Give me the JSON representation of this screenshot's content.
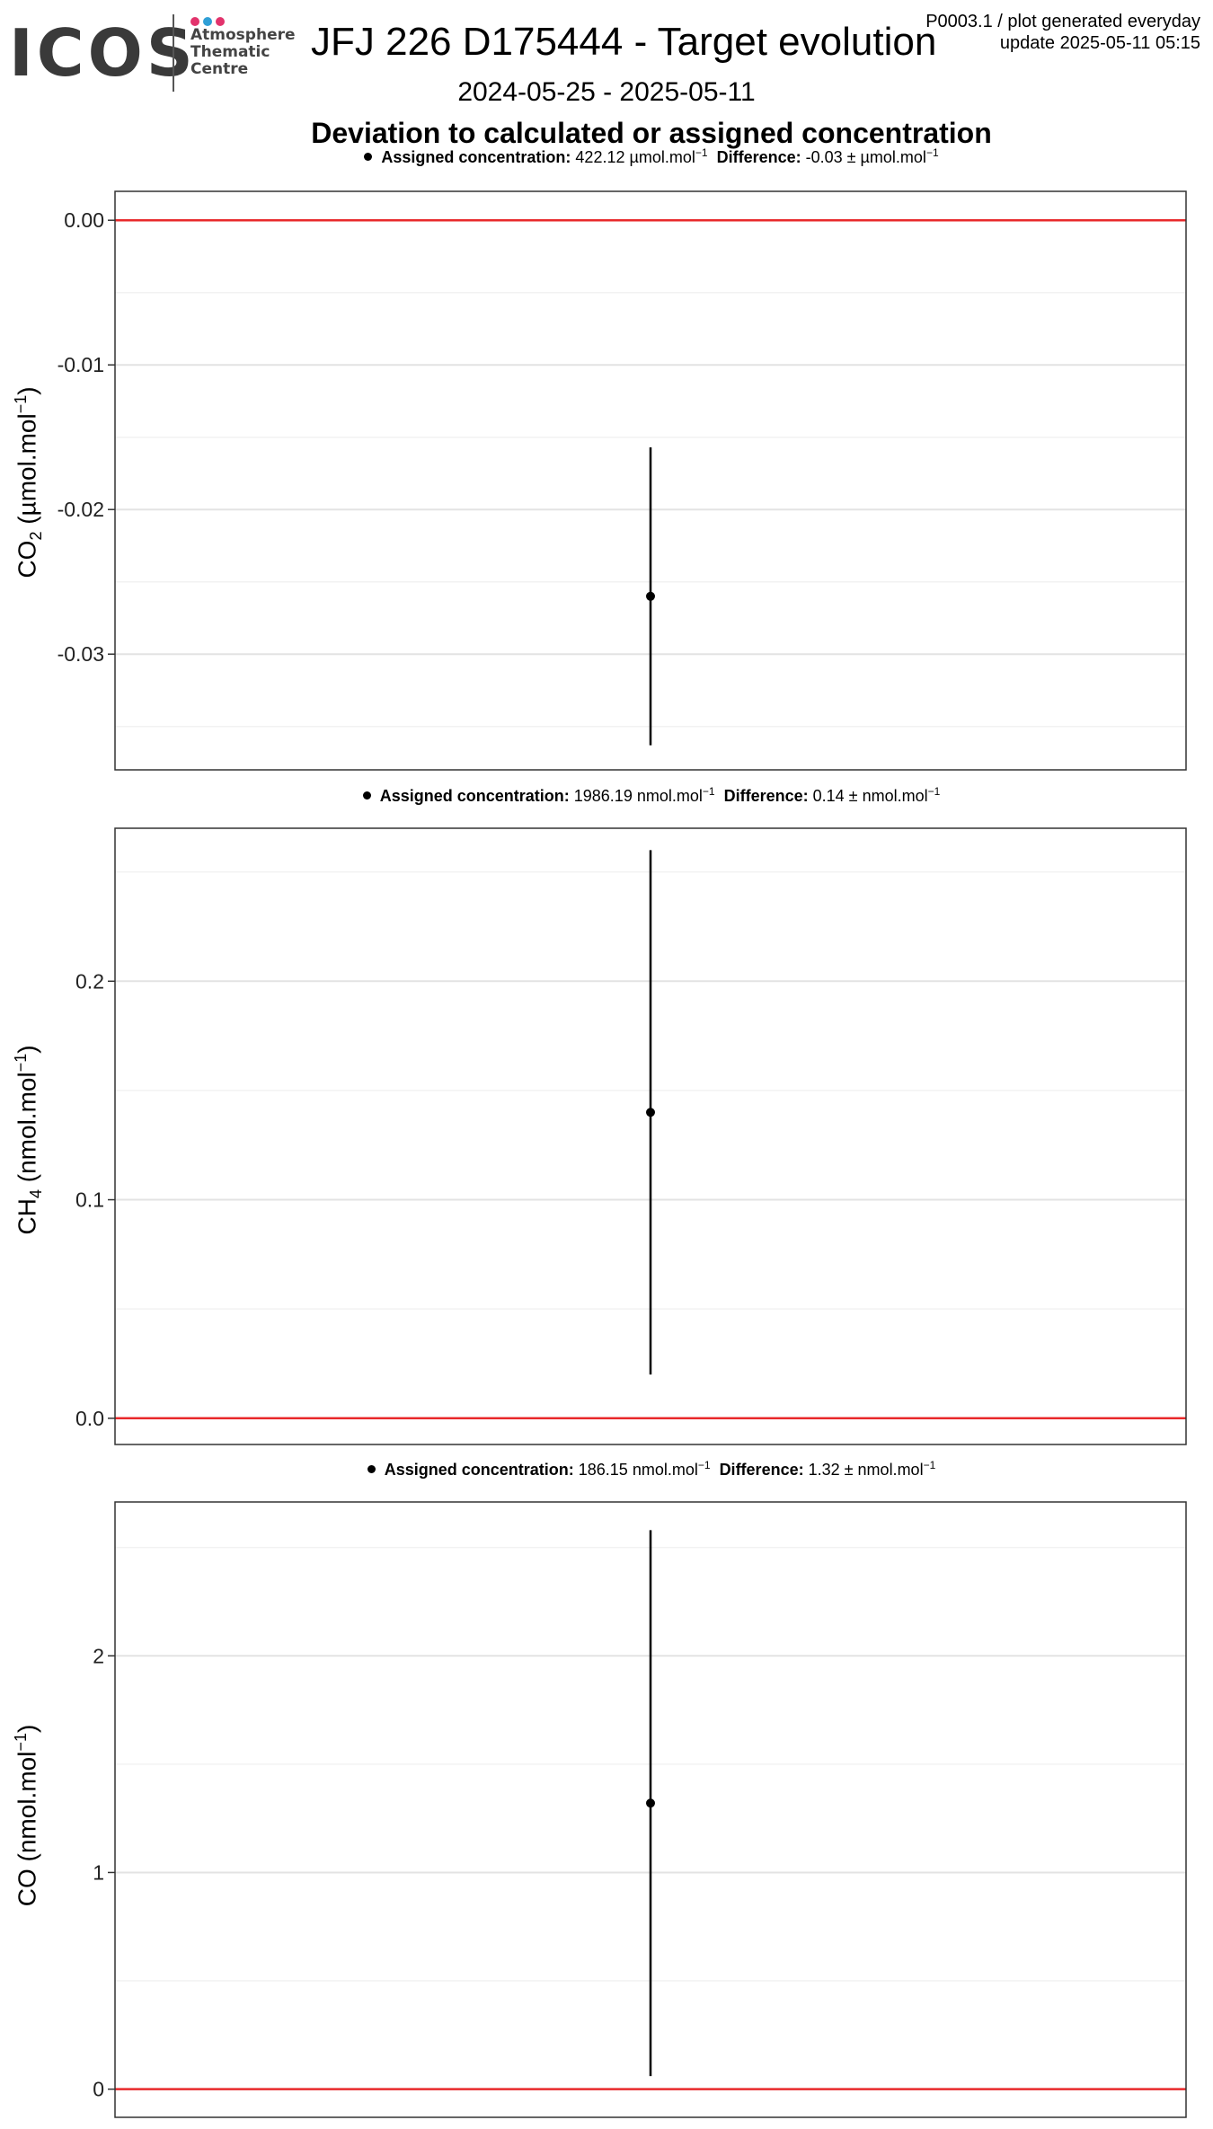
{
  "logo": {
    "wordmark": "ICOS",
    "line1": "Atmosphere",
    "line2": "Thematic",
    "line3": "Centre",
    "dot_colors": [
      "#e2336c",
      "#2f9fd6",
      "#e2336c"
    ]
  },
  "header": {
    "title": "JFJ 226 D175444 - Target evolution",
    "stamp_line1": "P0003.1 / plot generated everyday",
    "stamp_line2": "update  2025-05-11 05:15",
    "date_range": "2024-05-25 - 2025-05-11",
    "subtitle": "Deviation to calculated or assigned concentration"
  },
  "colors": {
    "zero_line": "#e8292b",
    "grid_major": "#e3e3e3",
    "grid_minor": "#f2f2f2",
    "panel_border": "#333333",
    "point": "#000000"
  },
  "panels": [
    {
      "caption": {
        "assigned_label": "Assigned concentration:",
        "assigned_value": "422.12",
        "assigned_unit": "µmol.mol",
        "difference_label": "Difference:",
        "difference_value": "-0.03",
        "difference_unit": "µmol.mol"
      },
      "ylabel_main": "CO",
      "ylabel_sub": "2",
      "ylabel_unit": "(µmol.mol",
      "ylabel_tail": ")"
    },
    {
      "caption": {
        "assigned_label": "Assigned concentration:",
        "assigned_value": "1986.19",
        "assigned_unit": "nmol.mol",
        "difference_label": "Difference:",
        "difference_value": "0.14",
        "difference_unit": "nmol.mol"
      },
      "ylabel_main": "CH",
      "ylabel_sub": "4",
      "ylabel_unit": "(nmol.mol",
      "ylabel_tail": ")"
    },
    {
      "caption": {
        "assigned_label": "Assigned concentration:",
        "assigned_value": "186.15",
        "assigned_unit": "nmol.mol",
        "difference_label": "Difference:",
        "difference_value": "1.32",
        "difference_unit": "nmol.mol"
      },
      "ylabel_main": "CO",
      "ylabel_sub": "",
      "ylabel_unit": "(nmol.mol",
      "ylabel_tail": ")"
    }
  ],
  "chart_data": [
    {
      "type": "scatter",
      "ylabel": "CO2 (µmol.mol-1)",
      "ylim": [
        -0.038,
        0.002
      ],
      "yticks": [
        0.0,
        -0.01,
        -0.02,
        -0.03
      ],
      "ytick_labels": [
        "0.00",
        "-0.01",
        "-0.02",
        "-0.03"
      ],
      "minor_ticks": [
        -0.005,
        -0.015,
        -0.025,
        -0.035
      ],
      "zero_line": 0,
      "grid": true,
      "points": [
        {
          "y": -0.026,
          "ymin": -0.0363,
          "ymax": -0.0157
        }
      ]
    },
    {
      "type": "scatter",
      "ylabel": "CH4 (nmol.mol-1)",
      "ylim": [
        -0.012,
        0.27
      ],
      "yticks": [
        0.0,
        0.1,
        0.2
      ],
      "ytick_labels": [
        "0.0",
        "0.1",
        "0.2"
      ],
      "minor_ticks": [
        0.05,
        0.15,
        0.25
      ],
      "zero_line": 0,
      "grid": true,
      "points": [
        {
          "y": 0.14,
          "ymin": 0.02,
          "ymax": 0.26
        }
      ]
    },
    {
      "type": "scatter",
      "ylabel": "CO (nmol.mol-1)",
      "ylim": [
        -0.13,
        2.71
      ],
      "yticks": [
        0,
        1,
        2
      ],
      "ytick_labels": [
        "0",
        "1",
        "2"
      ],
      "minor_ticks": [
        0.5,
        1.5,
        2.5
      ],
      "zero_line": 0,
      "grid": true,
      "points": [
        {
          "y": 1.32,
          "ymin": 0.06,
          "ymax": 2.58
        }
      ]
    }
  ]
}
